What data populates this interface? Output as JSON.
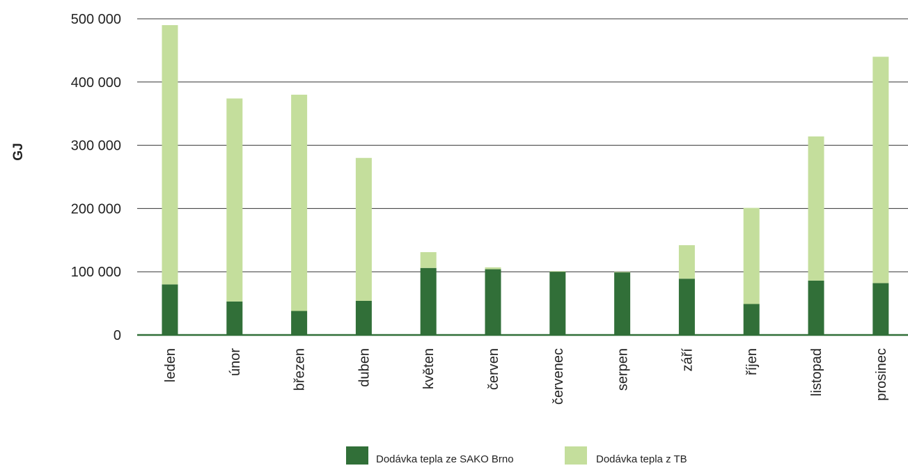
{
  "chart_data": {
    "type": "bar",
    "stacked": true,
    "title": "",
    "xlabel": "",
    "ylabel": "GJ",
    "ylim": [
      0,
      500000
    ],
    "yticks": [
      0,
      100000,
      200000,
      300000,
      400000,
      500000
    ],
    "ytick_labels": [
      "0",
      "100 000",
      "200 000",
      "300 000",
      "400 000",
      "500 000"
    ],
    "grid": true,
    "legend_position": "bottom",
    "categories": [
      "leden",
      "únor",
      "březen",
      "duben",
      "květen",
      "červen",
      "červenec",
      "serpen",
      "září",
      "říjen",
      "listopad",
      "prosinec"
    ],
    "series": [
      {
        "name": "Dodávka tepla ze SAKO Brno",
        "color": "#316f38",
        "values": [
          80000,
          53000,
          38000,
          54000,
          106000,
          104000,
          100000,
          99000,
          89000,
          49000,
          86000,
          82000
        ]
      },
      {
        "name": "Dodávka tepla z TB",
        "color": "#c4de9c",
        "values": [
          410000,
          321000,
          342000,
          226000,
          25000,
          3000,
          1000,
          1000,
          53000,
          152000,
          228000,
          358000
        ]
      }
    ]
  }
}
